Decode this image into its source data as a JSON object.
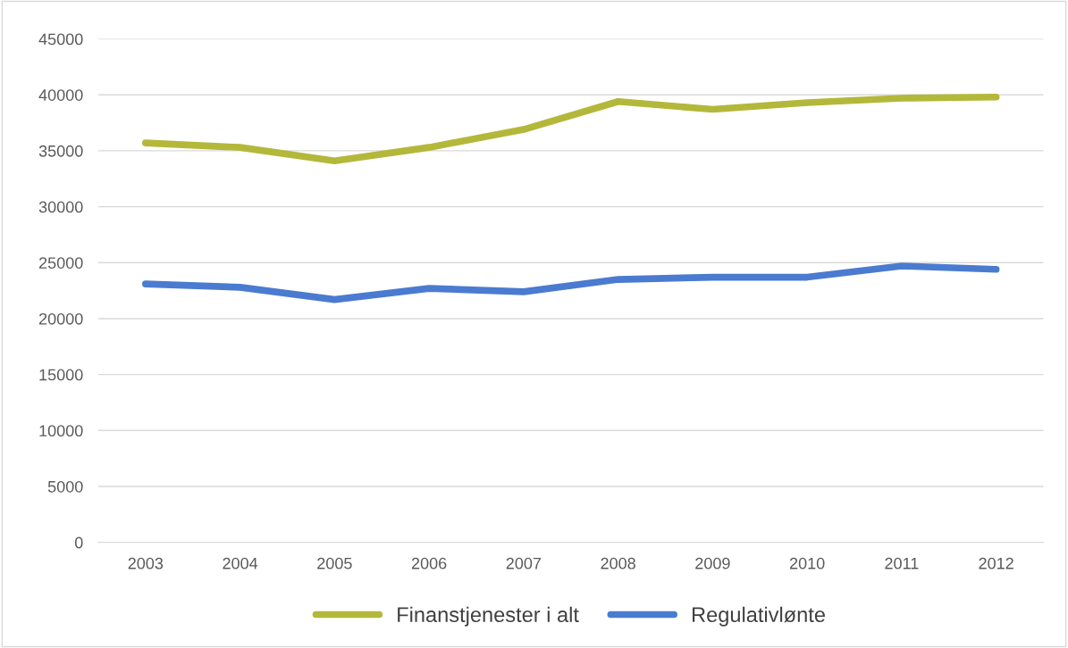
{
  "chart_data": {
    "type": "line",
    "categories": [
      "2003",
      "2004",
      "2005",
      "2006",
      "2007",
      "2008",
      "2009",
      "2010",
      "2011",
      "2012"
    ],
    "series": [
      {
        "name": "Finanstjenester i alt",
        "color": "#b3b83a",
        "values": [
          35700,
          35300,
          34100,
          35300,
          36900,
          39400,
          38700,
          39300,
          39700,
          39800
        ]
      },
      {
        "name": "Regulativlønte",
        "color": "#4a7bd0",
        "values": [
          23100,
          22800,
          21700,
          22700,
          22400,
          23500,
          23700,
          23700,
          24700,
          24400
        ]
      }
    ],
    "ylim": [
      0,
      45000
    ],
    "yticks": [
      0,
      5000,
      10000,
      15000,
      20000,
      25000,
      30000,
      35000,
      40000,
      45000
    ],
    "grid": "y",
    "legend": "bottom",
    "marker": "none",
    "line_style": "solid"
  }
}
